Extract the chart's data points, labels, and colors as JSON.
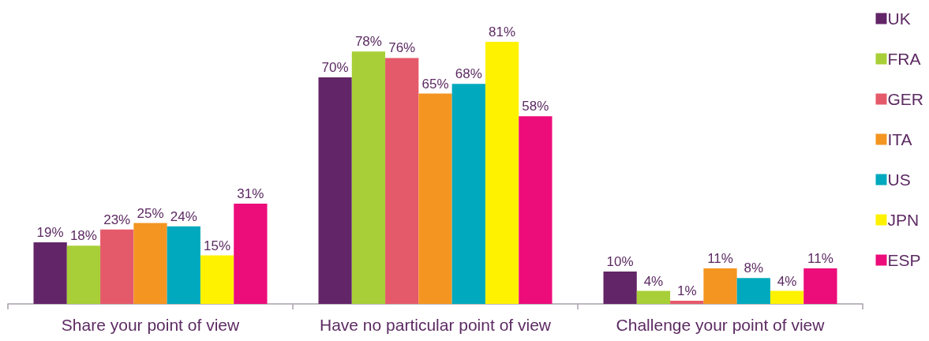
{
  "chart_data": {
    "type": "bar",
    "categories": [
      "Share your point of view",
      "Have no particular point of view",
      "Challenge your point of view"
    ],
    "series": [
      {
        "name": "UK",
        "color": "#622567",
        "values": [
          19,
          70,
          10
        ],
        "value_labels": [
          "19%",
          "70%",
          "10%"
        ]
      },
      {
        "name": "FRA",
        "color": "#a8cf38",
        "values": [
          18,
          78,
          4
        ],
        "value_labels": [
          "18%",
          "78%",
          "4%"
        ]
      },
      {
        "name": "GER",
        "color": "#e55a6a",
        "values": [
          23,
          76,
          1
        ],
        "value_labels": [
          "23%",
          "76%",
          "1%"
        ]
      },
      {
        "name": "ITA",
        "color": "#f49521",
        "values": [
          25,
          65,
          11
        ],
        "value_labels": [
          "25%",
          "65%",
          "11%"
        ]
      },
      {
        "name": "US",
        "color": "#00a9bd",
        "values": [
          24,
          68,
          8
        ],
        "value_labels": [
          "24%",
          "68%",
          "8%"
        ]
      },
      {
        "name": "JPN",
        "color": "#fff200",
        "values": [
          15,
          81,
          4
        ],
        "value_labels": [
          "15%",
          "81%",
          "4%"
        ]
      },
      {
        "name": "ESP",
        "color": "#ec0c7a",
        "values": [
          31,
          58,
          11
        ],
        "value_labels": [
          "31%",
          "58%",
          "11%"
        ]
      }
    ],
    "legend": "right",
    "grid": false,
    "tick_labels": "x"
  }
}
